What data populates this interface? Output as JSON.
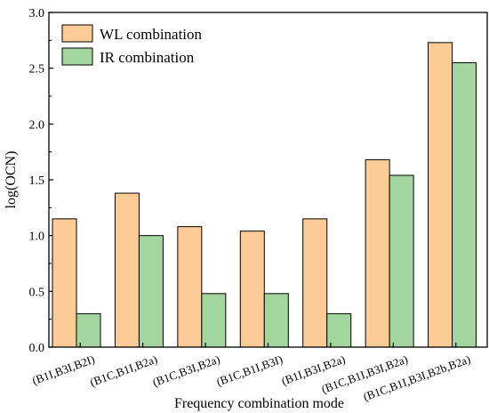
{
  "chart_data": {
    "type": "bar",
    "title": "",
    "xlabel": "Frequency combination mode",
    "ylabel": "log(OCN)",
    "ylim": [
      0,
      3.0
    ],
    "yticks": [
      "0.0",
      "0.5",
      "1.0",
      "1.5",
      "2.0",
      "2.5",
      "3.0"
    ],
    "grid": false,
    "legend_position": "top-left",
    "categories": [
      "(B1I,B3I,B2I)",
      "(B1C,B1I,B2a)",
      "(B1C,B3I,B2a)",
      "(B1C,B1I,B3I)",
      "(B1I,B3I,B2a)",
      "(B1C,B1I,B3I,B2a)",
      "(B1C,B1I,B3I,B2b,B2a)"
    ],
    "series": [
      {
        "name": "WL combination",
        "color": "#fccb96",
        "values": [
          1.15,
          1.38,
          1.08,
          1.04,
          1.15,
          1.68,
          2.73
        ]
      },
      {
        "name": "IR combination",
        "color": "#a3d69f",
        "values": [
          0.3,
          1.0,
          0.48,
          0.48,
          0.3,
          1.54,
          2.55
        ]
      }
    ]
  }
}
